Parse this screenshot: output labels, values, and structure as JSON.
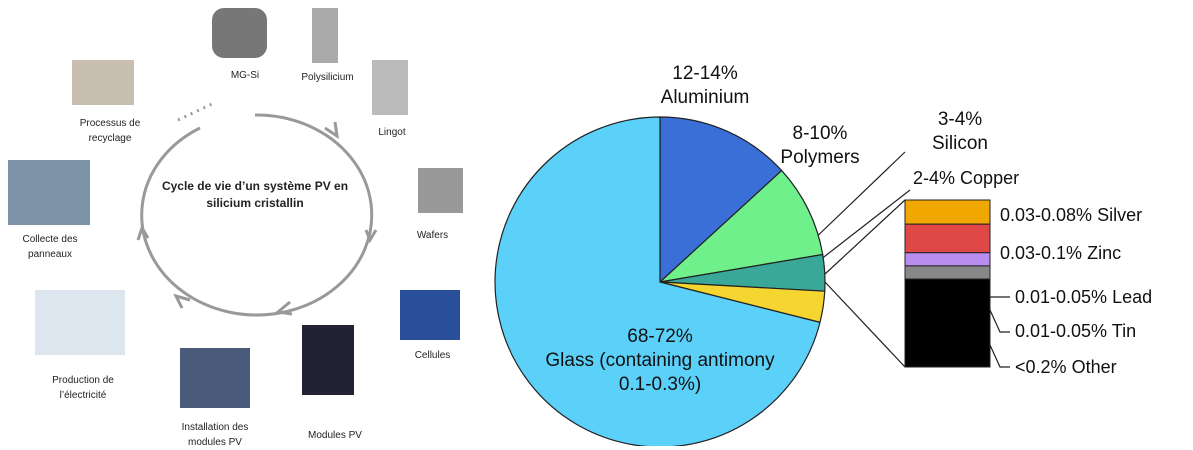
{
  "lifecycle": {
    "title": "Cycle de vie d’un système PV en silicium cristallin",
    "stages": [
      "MG-Si",
      "Polysilicium",
      "Lingot",
      "Wafers",
      "Cellules",
      "Modules PV",
      "Installation des modules PV",
      "Production de l’électricité",
      "Collecte des panneaux",
      "Processus de recyclage"
    ]
  },
  "chart_data": {
    "type": "pie",
    "categories": [
      "Aluminium",
      "Polymers",
      "Silicon",
      "Copper",
      "Glass (containing antimony 0.1-0.3%)"
    ],
    "values": [
      13,
      9,
      3.5,
      3,
      70
    ],
    "value_labels": [
      "12-14%",
      "8-10%",
      "3-4%",
      "2-4%",
      "68-72%"
    ],
    "colors": [
      "#3a6fd8",
      "#6ff08a",
      "#3aa898",
      "#f5d630",
      "#5bd0f8"
    ],
    "breakdown": {
      "type": "stacked-bar",
      "categories": [
        "Silver",
        "Zinc",
        "Lead",
        "Tin",
        "Other"
      ],
      "values": [
        0.055,
        0.065,
        0.03,
        0.03,
        0.2
      ],
      "value_labels": [
        "0.03-0.08%",
        "0.03-0.1%",
        "0.01-0.05%",
        "0.01-0.05%",
        "<0.2%"
      ],
      "colors": [
        "#f0a800",
        "#e04848",
        "#b98cf0",
        "#888888",
        "#000000"
      ]
    }
  }
}
